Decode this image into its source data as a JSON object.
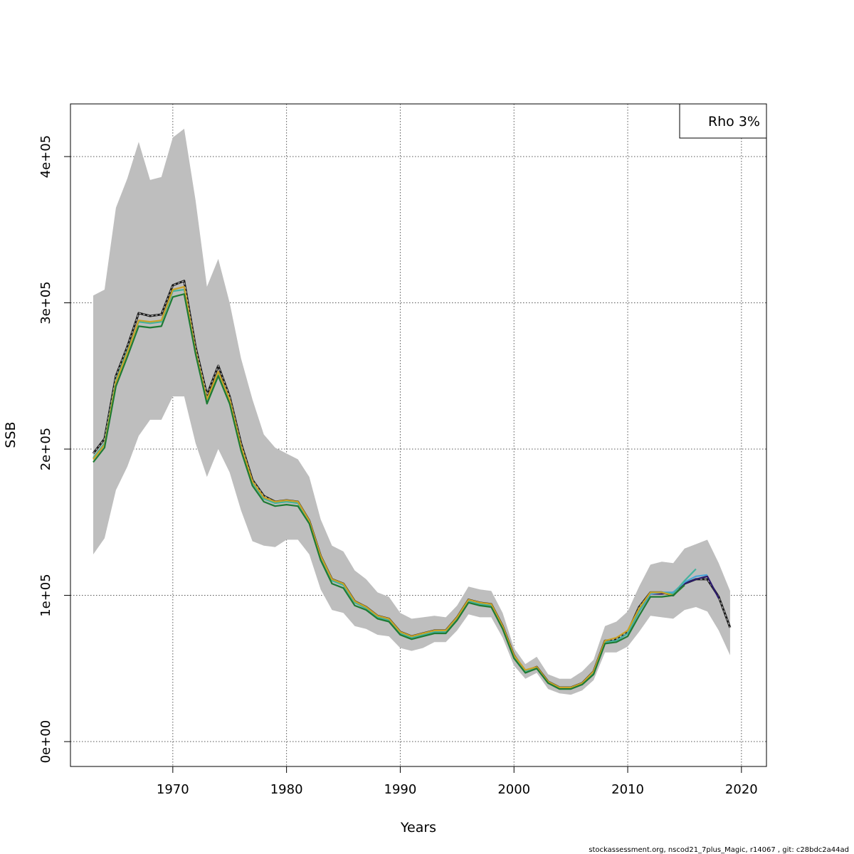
{
  "chart_data": {
    "type": "line",
    "xlabel": "Years",
    "ylabel": "SSB",
    "xlim": [
      1961,
      2022.2
    ],
    "ylim": [
      -17000,
      436000
    ],
    "x_ticks": [
      1970,
      1980,
      1990,
      2000,
      2010,
      2020
    ],
    "x_tick_labels": [
      "1970",
      "1980",
      "1990",
      "2000",
      "2010",
      "2020"
    ],
    "y_ticks": [
      0,
      100000,
      200000,
      300000,
      400000
    ],
    "y_tick_labels": [
      "0e+00",
      "1e+05",
      "2e+05",
      "3e+05",
      "4e+05"
    ],
    "grid": true,
    "legend": {
      "text": "Rho 3%",
      "position": "top-right"
    },
    "footer": "stockassessment.org, nscod21_7plus_Magic, r14067 , git: c28bdc2a44ad",
    "confidence_band": {
      "x": [
        1963,
        1964,
        1965,
        1966,
        1967,
        1968,
        1969,
        1970,
        1971,
        1972,
        1973,
        1974,
        1975,
        1976,
        1977,
        1978,
        1979,
        1980,
        1981,
        1982,
        1983,
        1984,
        1985,
        1986,
        1987,
        1988,
        1989,
        1990,
        1991,
        1992,
        1993,
        1994,
        1995,
        1996,
        1997,
        1998,
        1999,
        2000,
        2001,
        2002,
        2003,
        2004,
        2005,
        2006,
        2007,
        2008,
        2009,
        2010,
        2011,
        2012,
        2013,
        2014,
        2015,
        2016,
        2017,
        2018,
        2019
      ],
      "upper": [
        305000,
        309000,
        365000,
        385000,
        410000,
        384000,
        386000,
        413000,
        419000,
        370000,
        311000,
        330000,
        300000,
        262000,
        234000,
        210000,
        201000,
        197000,
        193000,
        181000,
        152000,
        134000,
        130000,
        117000,
        111000,
        102000,
        99000,
        88000,
        84000,
        85000,
        86000,
        85000,
        93000,
        106000,
        104000,
        103000,
        88000,
        64000,
        53000,
        58000,
        46000,
        43000,
        43000,
        48000,
        56000,
        79000,
        82000,
        89000,
        106000,
        121000,
        123000,
        122000,
        132000,
        135000,
        138000,
        122000,
        103000
      ],
      "lower": [
        128000,
        139000,
        172000,
        188000,
        209000,
        220000,
        220000,
        236000,
        236000,
        204000,
        181000,
        200000,
        184000,
        158000,
        137000,
        134000,
        133000,
        138000,
        138000,
        128000,
        104000,
        90000,
        88000,
        79000,
        77000,
        73000,
        72000,
        64000,
        62000,
        64000,
        68000,
        68000,
        76000,
        87000,
        85000,
        85000,
        71000,
        52000,
        43000,
        47000,
        36000,
        33000,
        32000,
        35000,
        42000,
        61000,
        61000,
        65000,
        75000,
        86000,
        85000,
        84000,
        90000,
        92000,
        89000,
        76000,
        59000
      ]
    },
    "series": [
      {
        "color": "#1a1a1a",
        "dashed": true,
        "x": [
          1963,
          1964,
          1965,
          1966,
          1967,
          1968,
          1969,
          1970,
          1971,
          1972,
          1973,
          1974,
          1975,
          1976,
          1977,
          1978,
          1979,
          1980,
          1981,
          1982,
          1983,
          1984,
          1985,
          1986,
          1987,
          1988,
          1989,
          1990,
          1991,
          1992,
          1993,
          1994,
          1995,
          1996,
          1997,
          1998,
          1999,
          2000,
          2001,
          2002,
          2003,
          2004,
          2005,
          2006,
          2007,
          2008,
          2009,
          2010,
          2011,
          2012,
          2013,
          2014,
          2015,
          2016,
          2017,
          2018,
          2019
        ],
        "values": [
          197000,
          207000,
          250000,
          270000,
          293000,
          291000,
          292000,
          312000,
          315000,
          270000,
          237000,
          257000,
          236000,
          204000,
          179000,
          168000,
          164000,
          165000,
          164000,
          151000,
          127000,
          111000,
          108000,
          96000,
          92000,
          86000,
          84000,
          75000,
          72000,
          74000,
          76000,
          76000,
          85000,
          97000,
          95000,
          94000,
          79000,
          59000,
          48000,
          51000,
          41000,
          37000,
          37000,
          40000,
          48000,
          69000,
          70000,
          75000,
          92000,
          102000,
          102000,
          100000,
          108000,
          111000,
          111000,
          99000,
          78000
        ]
      },
      {
        "color": "#2c1a6e",
        "dashed": false,
        "x": [
          2009,
          2010,
          2011,
          2012,
          2013,
          2014,
          2015,
          2016,
          2017,
          2018
        ],
        "values": [
          69000,
          74000,
          89000,
          101000,
          101000,
          102000,
          108000,
          111000,
          113000,
          98000
        ]
      },
      {
        "color": "#4aa3d8",
        "dashed": false,
        "x": [
          2009,
          2010,
          2011,
          2012,
          2013,
          2014,
          2015,
          2016,
          2017
        ],
        "values": [
          69000,
          74000,
          89000,
          101000,
          102000,
          102000,
          109000,
          113000,
          114000
        ]
      },
      {
        "color": "#45b39d",
        "dashed": false,
        "x": [
          1963,
          1964,
          1965,
          1966,
          1967,
          1968,
          1969,
          1970,
          1971,
          1972,
          1973,
          1974,
          1975,
          1976,
          1977,
          1978,
          1979,
          1980,
          1981,
          1982,
          1983,
          1984,
          1985,
          1986,
          1987,
          1988,
          1989,
          1990,
          1991,
          1992,
          1993,
          1994,
          1995,
          1996,
          1997,
          1998,
          1999,
          2000,
          2001,
          2002,
          2003,
          2004,
          2005,
          2006,
          2007,
          2008,
          2009,
          2010,
          2011,
          2012,
          2013,
          2014,
          2015,
          2016
        ],
        "values": [
          194000,
          204000,
          247000,
          267000,
          287000,
          286000,
          287000,
          308000,
          309000,
          266000,
          233000,
          252000,
          233000,
          201000,
          177000,
          166000,
          163000,
          164000,
          163000,
          150000,
          126000,
          110000,
          107000,
          95000,
          91000,
          85000,
          83000,
          74000,
          71000,
          73000,
          75000,
          75000,
          84000,
          96000,
          94000,
          93000,
          78000,
          58000,
          48000,
          50000,
          41000,
          37000,
          37000,
          40000,
          47000,
          68000,
          69000,
          74000,
          89000,
          102000,
          102000,
          101000,
          110000,
          118000
        ]
      },
      {
        "color": "#c9a227",
        "dashed": false,
        "x": [
          1963,
          1964,
          1965,
          1966,
          1967,
          1968,
          1969,
          1970,
          1971,
          1972,
          1973,
          1974,
          1975,
          1976,
          1977,
          1978,
          1979,
          1980,
          1981,
          1982,
          1983,
          1984,
          1985,
          1986,
          1987,
          1988,
          1989,
          1990,
          1991,
          1992,
          1993,
          1994,
          1995,
          1996,
          1997,
          1998,
          1999,
          2000,
          2001,
          2002,
          2003,
          2004,
          2005,
          2006,
          2007,
          2008,
          2009,
          2010,
          2011,
          2012,
          2013,
          2014,
          2015
        ],
        "values": [
          193000,
          203000,
          246000,
          266000,
          288000,
          287000,
          288000,
          309000,
          311000,
          267000,
          234000,
          253000,
          234000,
          202000,
          178000,
          167000,
          164000,
          165000,
          164000,
          151000,
          127000,
          111000,
          108000,
          96000,
          92000,
          86000,
          84000,
          75000,
          72000,
          74000,
          76000,
          76000,
          85000,
          97000,
          95000,
          94000,
          79000,
          59000,
          49000,
          51000,
          41000,
          37000,
          37000,
          40000,
          48000,
          69000,
          71000,
          76000,
          91000,
          102000,
          102000,
          100000,
          107000
        ]
      },
      {
        "color": "#1e7b34",
        "dashed": false,
        "x": [
          1963,
          1964,
          1965,
          1966,
          1967,
          1968,
          1969,
          1970,
          1971,
          1972,
          1973,
          1974,
          1975,
          1976,
          1977,
          1978,
          1979,
          1980,
          1981,
          1982,
          1983,
          1984,
          1985,
          1986,
          1987,
          1988,
          1989,
          1990,
          1991,
          1992,
          1993,
          1994,
          1995,
          1996,
          1997,
          1998,
          1999,
          2000,
          2001,
          2002,
          2003,
          2004,
          2005,
          2006,
          2007,
          2008,
          2009,
          2010,
          2011,
          2012,
          2013,
          2014,
          2015
        ],
        "values": [
          191000,
          201000,
          243000,
          263000,
          284000,
          283000,
          284000,
          304000,
          306000,
          265000,
          231000,
          250000,
          231000,
          199000,
          175000,
          164000,
          161000,
          162000,
          161000,
          149000,
          124000,
          108000,
          105000,
          93000,
          90000,
          84000,
          82000,
          73000,
          70000,
          72000,
          74000,
          74000,
          83000,
          95000,
          93000,
          92000,
          77000,
          57000,
          47000,
          50000,
          40000,
          36000,
          36000,
          39000,
          46000,
          67000,
          68000,
          72000,
          86000,
          99000,
          99000,
          100000,
          107000
        ]
      }
    ]
  }
}
